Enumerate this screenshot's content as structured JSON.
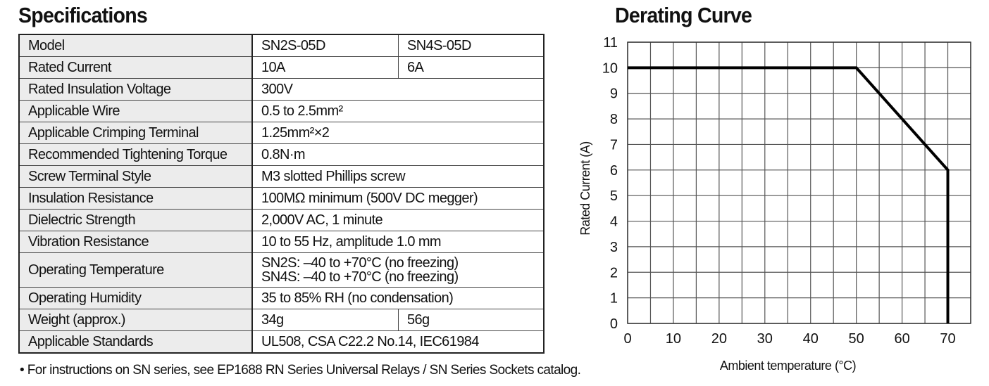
{
  "specifications": {
    "title": "Specifications",
    "rows": [
      {
        "label": "Model",
        "values": [
          "SN2S-05D",
          "SN4S-05D"
        ]
      },
      {
        "label": "Rated Current",
        "values": [
          "10A",
          "6A"
        ]
      },
      {
        "label": "Rated Insulation Voltage",
        "values": [
          "300V"
        ]
      },
      {
        "label": "Applicable Wire",
        "values": [
          "0.5 to 2.5mm²"
        ]
      },
      {
        "label": "Applicable Crimping Terminal",
        "values": [
          "1.25mm²×2"
        ]
      },
      {
        "label": "Recommended Tightening Torque",
        "values": [
          "0.8N·m"
        ]
      },
      {
        "label": "Screw Terminal Style",
        "values": [
          "M3 slotted Phillips screw"
        ]
      },
      {
        "label": "Insulation Resistance",
        "values": [
          "100MΩ minimum (500V DC megger)"
        ]
      },
      {
        "label": "Dielectric Strength",
        "values": [
          "2,000V AC, 1 minute"
        ]
      },
      {
        "label": "Vibration Resistance",
        "values": [
          "10 to 55 Hz, amplitude 1.0 mm"
        ]
      },
      {
        "label": "Operating Temperature",
        "values": [
          "SN2S: –40 to +70°C (no freezing)",
          "SN4S: –40 to +70°C (no freezing)"
        ],
        "multiline": true
      },
      {
        "label": "Operating Humidity",
        "values": [
          "35 to 85% RH (no condensation)"
        ]
      },
      {
        "label": "Weight (approx.)",
        "values": [
          "34g",
          "56g"
        ]
      },
      {
        "label": "Applicable Standards",
        "values": [
          "UL508, CSA C22.2 No.14, IEC61984"
        ]
      }
    ],
    "note": "• For instructions on SN series, see EP1688 RN Series Universal Relays / SN Series Sockets catalog."
  },
  "chart_data": {
    "type": "line",
    "title": "Derating Curve",
    "xlabel": "Ambient temperature (°C)",
    "ylabel": "Rated Current (A)",
    "xlim": [
      0,
      75
    ],
    "ylim": [
      0,
      11
    ],
    "xticks": [
      0,
      10,
      20,
      30,
      40,
      50,
      60,
      70
    ],
    "yticks": [
      0,
      1,
      2,
      3,
      4,
      5,
      6,
      7,
      8,
      9,
      10,
      11
    ],
    "grid": true,
    "grid_x_step": 5,
    "grid_y_step": 1,
    "line_color": "#000000",
    "series": [
      {
        "x": [
          0,
          50,
          70,
          70
        ],
        "y": [
          10,
          10,
          6,
          0
        ]
      }
    ]
  }
}
